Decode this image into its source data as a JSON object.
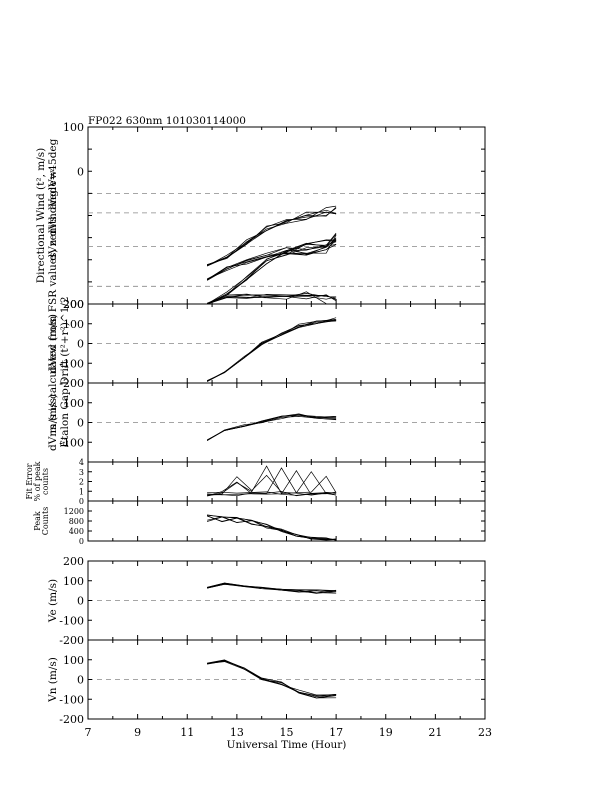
{
  "title": "FP022 630nm 101030114000",
  "colors": {
    "ink": "#000000",
    "dash": "#888888",
    "background": "#ffffff"
  },
  "x_axis": {
    "label": "Universal Time (Hour)",
    "range": [
      7,
      23
    ],
    "ticks": [
      7,
      9,
      11,
      13,
      15,
      17,
      19,
      21,
      23
    ],
    "minor_step": 1
  },
  "side_labels": {
    "group_upper": "m/s is calculated from FSR values, zenith angle=45deg",
    "group_lower": "Etalon Gap Drift (t²+r²)^1/2"
  },
  "panels": [
    {
      "id": "directional",
      "label_lines": [
        "Directional Wind (t², m/s)",
        "dVn dVs        dVedVw"
      ],
      "yticks": [
        {
          "v": 100,
          "t": "100"
        },
        {
          "v": 75,
          "t": ""
        },
        {
          "v": 50,
          "t": "0"
        },
        {
          "v": 25,
          "t": ""
        },
        {
          "v": 0,
          "t": ""
        },
        {
          "v": -25,
          "t": ""
        },
        {
          "v": -50,
          "t": ""
        },
        {
          "v": -75,
          "t": ""
        },
        {
          "v": -100,
          "t": "200"
        }
      ],
      "ylim": [
        -100,
        100
      ],
      "dashed": [
        -35,
        -80,
        25,
        3
      ]
    },
    {
      "id": "dvew",
      "label_lines": [
        "dVew (m/s)"
      ],
      "yticks": [
        {
          "v": 200,
          "t": "200"
        },
        {
          "v": 100,
          "t": "100"
        },
        {
          "v": 0,
          "t": "0"
        },
        {
          "v": -100,
          "t": "-100"
        },
        {
          "v": -200,
          "t": "-200"
        }
      ],
      "ylim": [
        -200,
        200
      ],
      "dashed": [
        0
      ]
    },
    {
      "id": "dvns",
      "label_lines": [
        "dVns (m/s)"
      ],
      "yticks": [
        {
          "v": 100,
          "t": "100"
        },
        {
          "v": 0,
          "t": "0"
        },
        {
          "v": -100,
          "t": "-100"
        }
      ],
      "ylim": [
        -200,
        200
      ],
      "dashed": [
        0
      ]
    },
    {
      "id": "fiterr",
      "label_lines": [
        "Fit Error",
        "% of peak",
        "counts"
      ],
      "yticks": [
        {
          "v": 4,
          "t": "4"
        },
        {
          "v": 3,
          "t": "3"
        },
        {
          "v": 2,
          "t": "2"
        },
        {
          "v": 1,
          "t": "1"
        },
        {
          "v": 0,
          "t": "0"
        }
      ],
      "ylim": [
        0,
        4
      ],
      "dashed": []
    },
    {
      "id": "peak",
      "label_lines": [
        "Peak",
        "Counts"
      ],
      "yticks": [
        {
          "v": 1200,
          "t": "1200"
        },
        {
          "v": 800,
          "t": "800"
        },
        {
          "v": 400,
          "t": "400"
        },
        {
          "v": 0,
          "t": "0"
        }
      ],
      "ylim": [
        0,
        1600
      ],
      "dashed": []
    },
    {
      "id": "ve",
      "label_lines": [
        "Ve (m/s)"
      ],
      "yticks": [
        {
          "v": 200,
          "t": "200"
        },
        {
          "v": 100,
          "t": "100"
        },
        {
          "v": 0,
          "t": "0"
        },
        {
          "v": -100,
          "t": "-100"
        },
        {
          "v": -200,
          "t": "-200"
        }
      ],
      "ylim": [
        -200,
        200
      ],
      "dashed": [
        0
      ]
    },
    {
      "id": "vn",
      "label_lines": [
        "Vn (m/s)"
      ],
      "yticks": [
        {
          "v": 100,
          "t": "100"
        },
        {
          "v": 0,
          "t": "0"
        },
        {
          "v": -100,
          "t": "-100"
        },
        {
          "v": -200,
          "t": "-200"
        }
      ],
      "ylim": [
        -200,
        200
      ],
      "dashed": [
        0
      ]
    }
  ],
  "chart_data": {
    "type": "line",
    "x_unit": "hour UT",
    "series": [
      {
        "panel": "directional",
        "x": [
          11.8,
          12.6,
          13.4,
          14.2,
          15.0,
          15.8,
          16.6,
          17.0
        ],
        "y": [
          -56,
          -47,
          -30,
          -15,
          -6,
          0,
          4,
          5
        ]
      },
      {
        "panel": "directional",
        "x": [
          11.8,
          12.6,
          13.4,
          14.2,
          15.0,
          15.8,
          16.6,
          17.0
        ],
        "y": [
          -72,
          -60,
          -52,
          -46,
          -40,
          -42,
          -38,
          -28
        ]
      },
      {
        "panel": "directional",
        "x": [
          11.8,
          12.6,
          13.4,
          14.2,
          15.0,
          15.8,
          16.6,
          17.0
        ],
        "y": [
          -100,
          -88,
          -70,
          -51,
          -41,
          -35,
          -32,
          -25
        ]
      },
      {
        "panel": "directional",
        "x": [
          11.8,
          12.6,
          13.4,
          14.2,
          15.0,
          15.8,
          16.6,
          17.0
        ],
        "y": [
          -100,
          -92,
          -91,
          -92,
          -91,
          -90,
          -95,
          -97
        ]
      },
      {
        "panel": "dvew",
        "x": [
          11.8,
          12.5,
          13.3,
          14.0,
          14.8,
          15.5,
          16.2,
          17.0
        ],
        "y": [
          -190,
          -145,
          -70,
          0,
          45,
          90,
          110,
          125
        ]
      },
      {
        "panel": "dvns",
        "x": [
          11.8,
          12.5,
          13.3,
          14.0,
          14.8,
          15.5,
          16.2,
          17.0
        ],
        "y": [
          -90,
          -40,
          -15,
          5,
          25,
          35,
          25,
          20
        ]
      },
      {
        "panel": "fiterr",
        "x": [
          11.8,
          12.4,
          13.0,
          13.6,
          14.2,
          14.8,
          15.4,
          16.0,
          16.6,
          17.0
        ],
        "y": [
          0.5,
          0.6,
          0.5,
          0.7,
          0.6,
          0.6,
          0.5,
          0.6,
          0.7,
          0.6
        ]
      },
      {
        "panel": "peak",
        "x": [
          11.8,
          12.4,
          13.0,
          13.6,
          14.2,
          14.8,
          15.4,
          16.0,
          16.6,
          17.0
        ],
        "y": [
          1050,
          1000,
          950,
          850,
          650,
          450,
          250,
          130,
          90,
          80
        ]
      },
      {
        "panel": "ve",
        "x": [
          11.8,
          12.5,
          13.3,
          14.0,
          14.8,
          15.5,
          16.2,
          17.0
        ],
        "y": [
          65,
          85,
          75,
          65,
          55,
          50,
          45,
          45
        ]
      },
      {
        "panel": "vn",
        "x": [
          11.8,
          12.5,
          13.3,
          14.0,
          14.8,
          15.5,
          16.2,
          17.0
        ],
        "y": [
          80,
          95,
          55,
          5,
          -20,
          -60,
          -85,
          -85
        ]
      }
    ]
  }
}
